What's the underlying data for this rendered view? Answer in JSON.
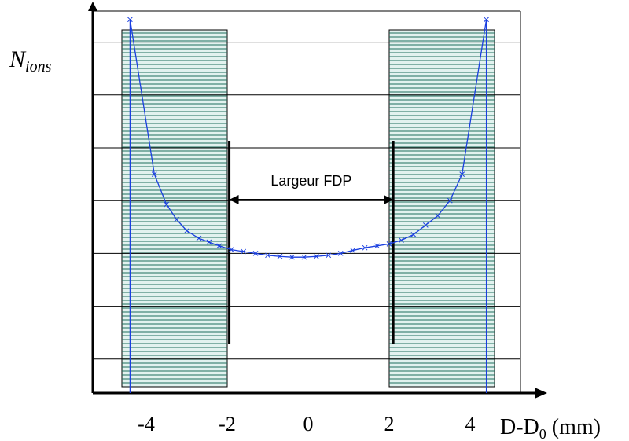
{
  "colors": {
    "band_fill": "#5fb8a8",
    "band_line": "#1f6f5c",
    "curve": "#1a3fe0",
    "grid": "#000000"
  },
  "chart_data": {
    "type": "line",
    "title": "",
    "ylabel_main": "N",
    "ylabel_sub": "ions",
    "xlabel_main": "D-D",
    "xlabel_sub": "0",
    "xlabel_unit": " (mm)",
    "xlim": [
      -5.2,
      5.2
    ],
    "ylim": [
      0,
      1
    ],
    "x_ticks": [
      -4,
      -2,
      0,
      2,
      4
    ],
    "x_tick_labels": [
      "-4",
      "-2",
      "0",
      "2",
      "4"
    ],
    "horizontal_gridlines": [
      0.09,
      0.23,
      0.37,
      0.51,
      0.65,
      0.79,
      0.93
    ],
    "shaded_bands": [
      [
        -4.6,
        -2.0
      ],
      [
        2.0,
        4.6
      ]
    ],
    "vertical_markers": [
      -1.95,
      2.1
    ],
    "series": [
      {
        "x": [
          -4.4,
          -3.8,
          -3.5,
          -3.25,
          -3.0,
          -2.7,
          -2.45,
          -2.2,
          -1.9,
          -1.6,
          -1.3,
          -1.0,
          -0.7,
          -0.4,
          -0.1,
          0.2,
          0.5,
          0.8,
          1.1,
          1.4,
          1.7,
          2.0,
          2.3,
          2.6,
          2.9,
          3.2,
          3.5,
          3.8,
          4.4
        ],
        "y": [
          0.99,
          0.58,
          0.5,
          0.46,
          0.43,
          0.41,
          0.4,
          0.39,
          0.38,
          0.375,
          0.37,
          0.365,
          0.362,
          0.36,
          0.36,
          0.362,
          0.365,
          0.37,
          0.378,
          0.385,
          0.39,
          0.395,
          0.405,
          0.42,
          0.445,
          0.47,
          0.51,
          0.58,
          0.99
        ]
      }
    ],
    "annotation": "Largeur FDP",
    "annotation_arrow": [
      -1.95,
      2.1
    ]
  }
}
